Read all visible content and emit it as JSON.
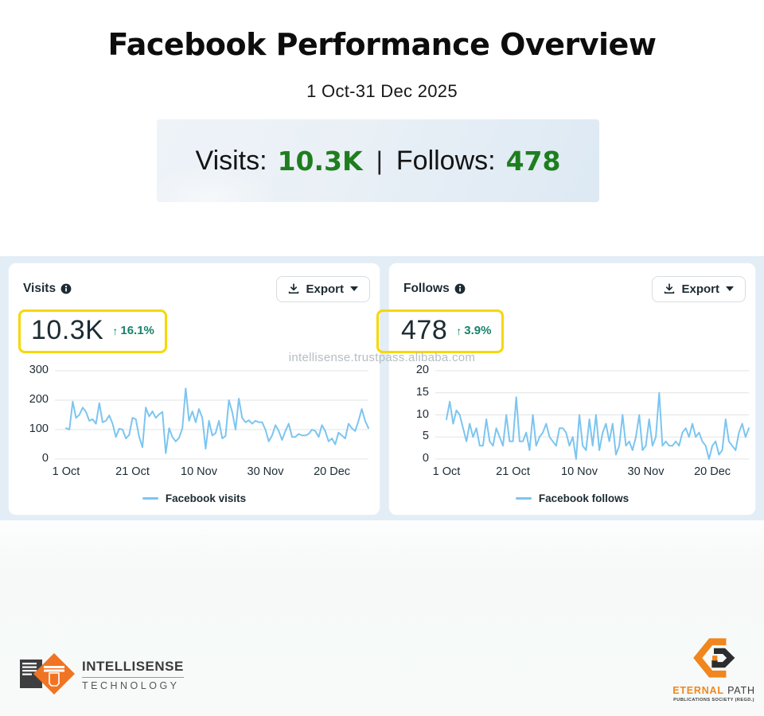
{
  "header": {
    "title": "Facebook Performance Overview",
    "date_range": "1 Oct-31 Dec 2025"
  },
  "summary": {
    "visits_label": "Visits:",
    "visits_value": "10.3K",
    "separator": "|",
    "follows_label": "Follows:",
    "follows_value": "478",
    "value_color": "#1e7e1e"
  },
  "watermark": "intellisense.trustpass.alibaba.com",
  "cards": [
    {
      "title": "Visits",
      "export_label": "Export",
      "metric_value": "10.3K",
      "delta_arrow": "↑",
      "delta": "16.1%",
      "legend": "Facebook visits",
      "highlight_color": "#f6d802"
    },
    {
      "title": "Follows",
      "export_label": "Export",
      "metric_value": "478",
      "delta_arrow": "↑",
      "delta": "3.9%",
      "legend": "Facebook follows",
      "highlight_color": "#f6d802"
    }
  ],
  "chart_data": [
    {
      "type": "line",
      "title": "Visits",
      "xlabel": "",
      "ylabel": "",
      "ylim": [
        0,
        300
      ],
      "y_ticks": [
        0,
        100,
        200,
        300
      ],
      "x_ticks": [
        {
          "day": 0,
          "label": "1 Oct"
        },
        {
          "day": 20,
          "label": "21 Oct"
        },
        {
          "day": 40,
          "label": "10 Nov"
        },
        {
          "day": 60,
          "label": "30 Nov"
        },
        {
          "day": 80,
          "label": "20 Dec"
        }
      ],
      "grid": true,
      "legend_position": "bottom",
      "color": "#7cc5f0",
      "series": [
        {
          "name": "Facebook visits",
          "values": [
            105,
            100,
            195,
            140,
            150,
            175,
            160,
            130,
            135,
            120,
            190,
            125,
            130,
            148,
            120,
            75,
            103,
            100,
            70,
            82,
            140,
            135,
            75,
            40,
            175,
            145,
            162,
            140,
            152,
            160,
            20,
            105,
            75,
            60,
            72,
            105,
            240,
            130,
            162,
            125,
            170,
            140,
            35,
            130,
            80,
            88,
            130,
            70,
            78,
            200,
            160,
            100,
            205,
            140,
            125,
            132,
            120,
            130,
            125,
            125,
            100,
            60,
            80,
            115,
            95,
            65,
            95,
            120,
            75,
            75,
            85,
            80,
            80,
            85,
            100,
            95,
            75,
            115,
            95,
            60,
            70,
            50,
            90,
            80,
            70,
            120,
            105,
            95,
            130,
            170,
            130,
            105
          ]
        }
      ]
    },
    {
      "type": "line",
      "title": "Follows",
      "xlabel": "",
      "ylabel": "",
      "ylim": [
        0,
        20
      ],
      "y_ticks": [
        0,
        5,
        10,
        15,
        20
      ],
      "x_ticks": [
        {
          "day": 0,
          "label": "1 Oct"
        },
        {
          "day": 20,
          "label": "21 Oct"
        },
        {
          "day": 40,
          "label": "10 Nov"
        },
        {
          "day": 60,
          "label": "30 Nov"
        },
        {
          "day": 80,
          "label": "20 Dec"
        }
      ],
      "grid": true,
      "legend_position": "bottom",
      "color": "#7cc5f0",
      "series": [
        {
          "name": "Facebook follows",
          "values": [
            9,
            13,
            8,
            11,
            10,
            7,
            4,
            8,
            5,
            7,
            3,
            3,
            9,
            4,
            3,
            7,
            5,
            3,
            10,
            4,
            4,
            14,
            4,
            4,
            6,
            2,
            10,
            3,
            5,
            6,
            8,
            5,
            4,
            3,
            7,
            7,
            6,
            3,
            5,
            0,
            10,
            3,
            2,
            9,
            3,
            10,
            2,
            6,
            8,
            4,
            8,
            1,
            3,
            10,
            3,
            4,
            2,
            5,
            10,
            2,
            3,
            9,
            3,
            5,
            15,
            3,
            4,
            3,
            3,
            4,
            3,
            6,
            7,
            5,
            8,
            5,
            6,
            4,
            3,
            0,
            3,
            4,
            1,
            2,
            9,
            4,
            3,
            2,
            6,
            8,
            5,
            7
          ]
        }
      ]
    }
  ],
  "footer": {
    "intellisense": {
      "line1": "INTELLISENSE",
      "line2": "TECHNOLOGY"
    },
    "eternal": {
      "name_a": "ETERNAL",
      "name_b": " PATH",
      "line2": "PUBLICATIONS SOCIETY (REGD.)"
    }
  }
}
